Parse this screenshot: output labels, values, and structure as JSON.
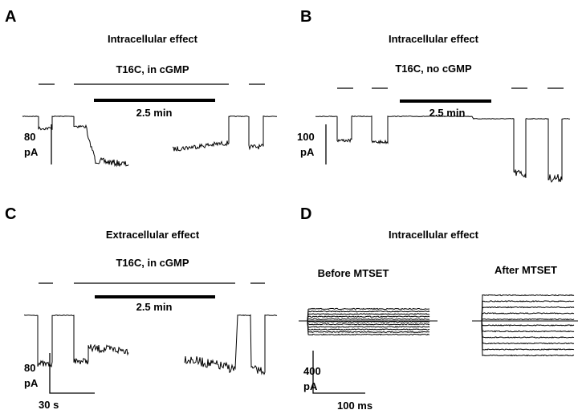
{
  "panels": [
    {
      "label": "A",
      "title": "Intracellular effect",
      "condition": "T16C, in cGMP",
      "duration": "2.5 min",
      "scale_y_value": "80",
      "scale_y_unit": "pA"
    },
    {
      "label": "B",
      "title": "Intracellular effect",
      "condition": "T16C, no cGMP",
      "duration": "2.5 min",
      "scale_y_value": "100",
      "scale_y_unit": "pA"
    },
    {
      "label": "C",
      "title": "Extracellular effect",
      "condition": "T16C, in cGMP",
      "duration": "2.5 min",
      "scale_y_value": "80",
      "scale_y_unit": "pA",
      "scale_x": "30 s"
    },
    {
      "label": "D",
      "title": "Intracellular effect",
      "before": "Before MTSET",
      "after": "After MTSET",
      "scale_y_value": "400",
      "scale_y_unit": "pA",
      "scale_x": "100 ms"
    }
  ]
}
